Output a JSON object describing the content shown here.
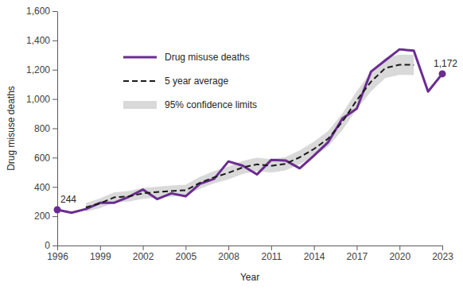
{
  "chart_data": {
    "type": "line",
    "x_label": "Year",
    "y_label": "Drug misuse deaths",
    "x": [
      1996,
      1997,
      1998,
      1999,
      2000,
      2001,
      2002,
      2003,
      2004,
      2005,
      2006,
      2007,
      2008,
      2009,
      2010,
      2011,
      2012,
      2013,
      2014,
      2015,
      2016,
      2017,
      2018,
      2019,
      2020,
      2021,
      2022,
      2023
    ],
    "series": [
      {
        "name": "Drug misuse deaths",
        "type": "line",
        "color": "#6b2c91",
        "line_style": "solid",
        "values": [
          244,
          224,
          249,
          291,
          292,
          332,
          382,
          317,
          356,
          336,
          421,
          455,
          574,
          545,
          485,
          584,
          581,
          527,
          614,
          706,
          868,
          934,
          1187,
          1264,
          1339,
          1330,
          1051,
          1172
        ]
      },
      {
        "name": "5 year average",
        "type": "line",
        "color": "#1a1a1a",
        "line_style": "dashed",
        "values": [
          null,
          null,
          260,
          288,
          329,
          335,
          356,
          365,
          372,
          377,
          428,
          466,
          496,
          533,
          554,
          544,
          558,
          602,
          659,
          730,
          846,
          992,
          1118,
          1211,
          1234,
          1233,
          null,
          null
        ]
      },
      {
        "name": "95% confidence limits",
        "type": "band",
        "color": "#d9d9d9",
        "lower": [
          null,
          null,
          230,
          255,
          294,
          299,
          319,
          328,
          334,
          339,
          387,
          424,
          452,
          488,
          508,
          498,
          512,
          554,
          609,
          677,
          789,
          930,
          1052,
          1143,
          1165,
          1164,
          null,
          null
        ],
        "upper": [
          null,
          null,
          290,
          322,
          364,
          371,
          393,
          402,
          410,
          415,
          469,
          508,
          540,
          578,
          600,
          590,
          604,
          650,
          709,
          783,
          903,
          1054,
          1184,
          1279,
          1303,
          1302,
          null,
          null
        ]
      }
    ],
    "annotations": [
      {
        "x": 1996,
        "y": 244,
        "text": "244"
      },
      {
        "x": 2023,
        "y": 1172,
        "text": "1,172"
      }
    ],
    "xlim": [
      1996,
      2023
    ],
    "xticks": [
      1996,
      1999,
      2002,
      2005,
      2008,
      2011,
      2014,
      2017,
      2020,
      2023
    ],
    "ylim": [
      0,
      1600
    ],
    "yticks": [
      0,
      200,
      400,
      600,
      800,
      {
        "value": 1000,
        "label": "1,000"
      },
      {
        "value": 1200,
        "label": "1,200"
      },
      {
        "value": 1400,
        "label": "1,400"
      },
      {
        "value": 1600,
        "label": "1,600"
      }
    ],
    "grid": false,
    "legend": "top-left"
  }
}
